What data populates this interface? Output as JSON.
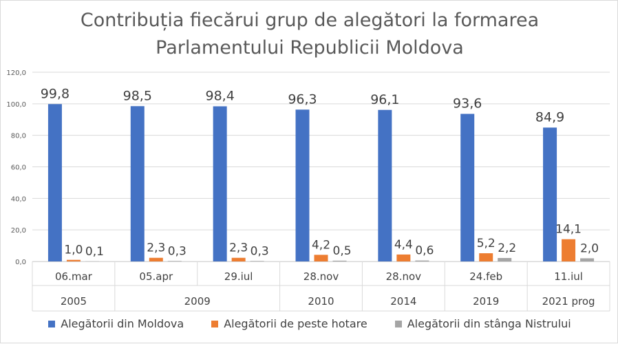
{
  "chart_data": {
    "type": "bar",
    "title_lines": [
      "Contribuția fiecărui grup de alegători la formarea",
      "Parlamentului Republicii Moldova"
    ],
    "categories": [
      "06.mar",
      "05.apr",
      "29.iul",
      "28.nov",
      "28.nov",
      "24.feb",
      "11.iul"
    ],
    "year_groups": [
      {
        "label": "2005",
        "span": 1
      },
      {
        "label": "2009",
        "span": 2
      },
      {
        "label": "2010",
        "span": 1
      },
      {
        "label": "2014",
        "span": 1
      },
      {
        "label": "2019",
        "span": 1
      },
      {
        "label": "2021 prog",
        "span": 1
      }
    ],
    "series": [
      {
        "name": "Alegătorii din Moldova",
        "color": "#4472c4",
        "values": [
          99.8,
          98.5,
          98.4,
          96.3,
          96.1,
          93.6,
          84.9
        ],
        "labels": [
          "99,8",
          "98,5",
          "98,4",
          "96,3",
          "96,1",
          "93,6",
          "84,9"
        ]
      },
      {
        "name": "Alegătorii de peste hotare",
        "color": "#ed7d31",
        "values": [
          1.0,
          2.3,
          2.3,
          4.2,
          4.4,
          5.2,
          14.1
        ],
        "labels": [
          "1,0",
          "2,3",
          "2,3",
          "4,2",
          "4,4",
          "5,2",
          "14,1"
        ]
      },
      {
        "name": "Alegătorii din stânga Nistrului",
        "color": "#a5a5a5",
        "values": [
          0.1,
          0.3,
          0.3,
          0.5,
          0.6,
          2.2,
          2.0
        ],
        "labels": [
          "0,1",
          "0,3",
          "0,3",
          "0,5",
          "0,6",
          "2,2",
          "2,0"
        ]
      }
    ],
    "ylim": [
      0,
      120
    ],
    "yticks": [
      0,
      20,
      40,
      60,
      80,
      100,
      120
    ],
    "ytick_labels": [
      "0,0",
      "20,0",
      "40,0",
      "60,0",
      "80,0",
      "100,0",
      "120,0"
    ],
    "grid": true,
    "legend_position": "bottom"
  }
}
